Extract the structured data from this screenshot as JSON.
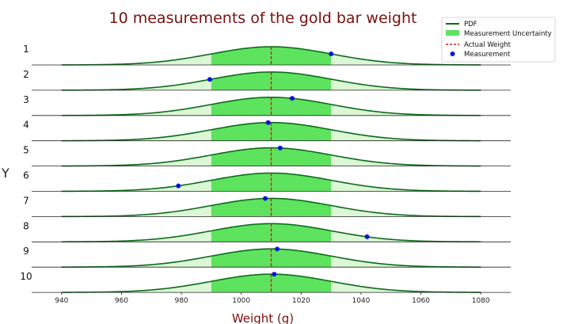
{
  "chart_data": {
    "type": "area",
    "title": "10 measurements of the gold bar weight",
    "xlabel": "Weight (g)",
    "ylabel": "Y",
    "xlim": [
      930,
      1090
    ],
    "x_ticks": [
      940,
      960,
      980,
      1000,
      1020,
      1040,
      1060,
      1080
    ],
    "actual_weight": 1010,
    "uncertainty_range": [
      990,
      1030
    ],
    "pdf_sigma": 20,
    "pdf_range": [
      940,
      1080
    ],
    "rows": [
      "1",
      "2",
      "3",
      "4",
      "5",
      "6",
      "7",
      "8",
      "9",
      "10"
    ],
    "measurements": [
      1030,
      989.5,
      1017,
      1009,
      1013,
      979,
      1008,
      1042,
      1012,
      1011
    ],
    "legend": {
      "position": "top-right",
      "items": [
        "PDF",
        "Measurement Uncertainty",
        "Actual Weight",
        "Measurement"
      ]
    },
    "colors": {
      "pdf": "#0b6b1a",
      "uncertainty": "#5ee35e",
      "tail_fill": "#dcf7d6",
      "actual": "#cc1f1f",
      "point": "#0b15d6",
      "title": "#7b1010"
    }
  }
}
